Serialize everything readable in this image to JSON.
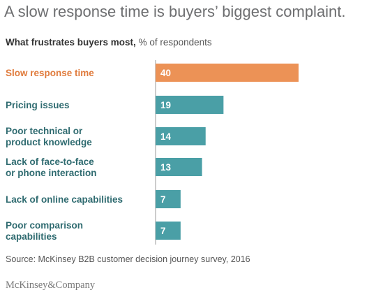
{
  "header": {
    "title": "A slow response time is buyers’ biggest complaint.",
    "subtitle_lead": "What frustrates buyers most,",
    "subtitle_unit": "% of respondents"
  },
  "chart_data": {
    "type": "bar",
    "orientation": "horizontal",
    "categories": [
      "Slow response time",
      "Pricing issues",
      "Poor technical or\nproduct knowledge",
      "Lack of face-to-face\nor phone interaction",
      "Lack of online capabilities",
      "Poor comparison\ncapabilities"
    ],
    "values": [
      40,
      19,
      14,
      13,
      7,
      7
    ],
    "highlight_index": 0,
    "xlim": [
      0,
      40
    ],
    "grid": false,
    "legend": "none",
    "colors": {
      "highlight_bar": "#ec9256",
      "highlight_label": "#e07b3c",
      "bar": "#4a9fa6",
      "label": "#2f6b70",
      "axis": "#9a9a9a",
      "value_text": "#ffffff"
    }
  },
  "footer": {
    "source": "Source: McKinsey B2B customer decision journey survey, 2016",
    "brand": "McKinsey&Company"
  }
}
